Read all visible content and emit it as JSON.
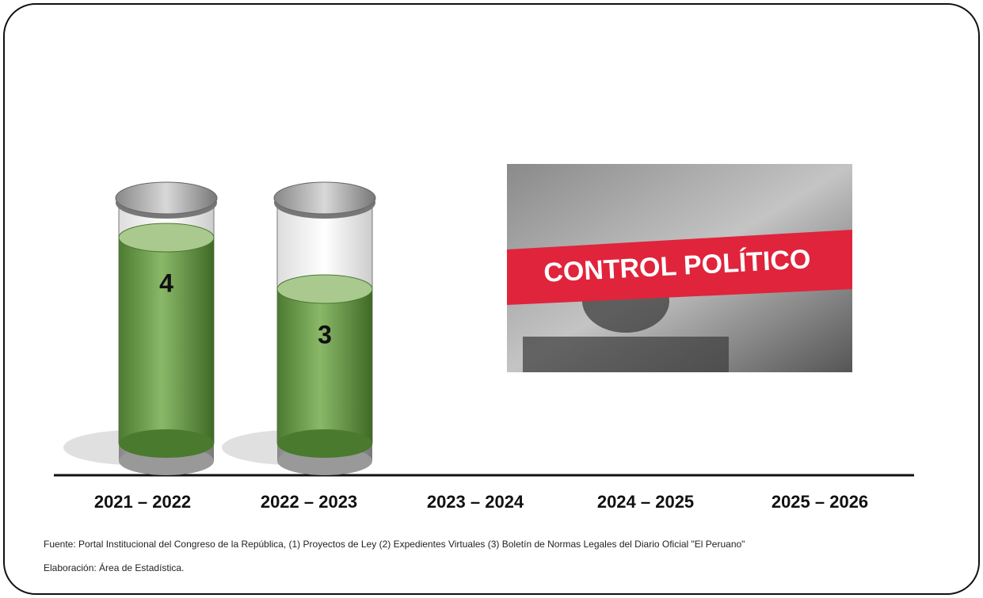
{
  "chart_data": {
    "type": "cylinder",
    "categories": [
      "2021 – 2022",
      "2022 – 2023",
      "2023 – 2024",
      "2024 – 2025",
      "2025 – 2026"
    ],
    "values": [
      4,
      3,
      null,
      null,
      null
    ],
    "color": "#5a8a3a",
    "annotation": "CONTROL POLÍTICO",
    "source": "Fuente: Portal Institucional del Congreso de la República, (1) Proyectos de Ley (2) Expedientes Virtuales (3) Boletín de Normas Legales del Diario Oficial \"El Peruano\"",
    "credit": "Elaboración:  Área de Estadística."
  }
}
